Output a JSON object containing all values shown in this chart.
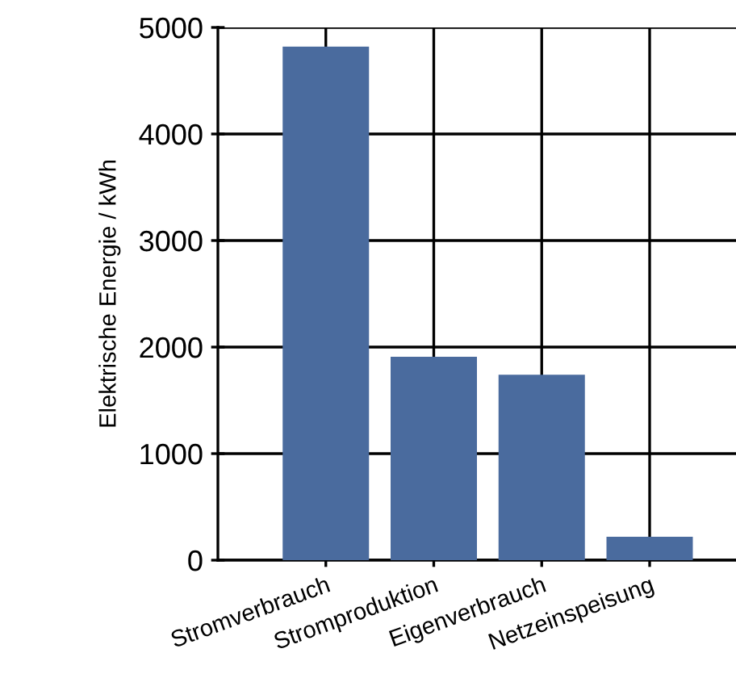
{
  "chart_data": {
    "type": "bar",
    "ylabel": "Elektrische Energie / kWh",
    "categories": [
      "Stromverbrauch",
      "Stromproduktion",
      "Eigenverbrauch",
      "Netzeinspeisung"
    ],
    "values": [
      4820,
      1910,
      1740,
      220
    ],
    "color": "#4a6b9e",
    "ylim": [
      0,
      5000
    ],
    "yticks": [
      0,
      1000,
      2000,
      3000,
      4000,
      5000
    ],
    "grid": true
  }
}
